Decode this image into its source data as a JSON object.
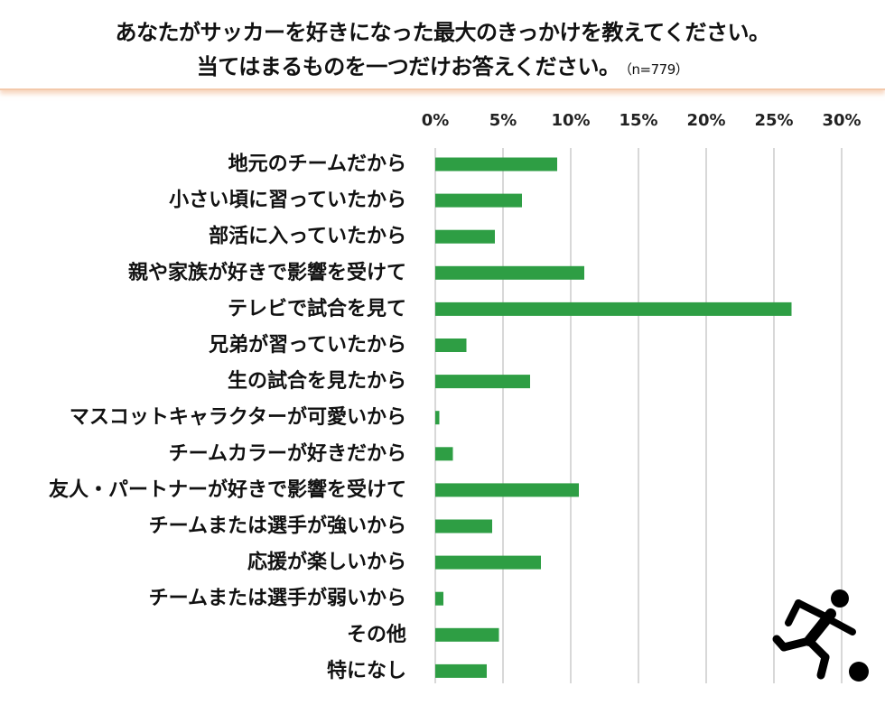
{
  "title": {
    "line1": "あなたがサッカーを好きになった最大のきっかけを教えてください。",
    "line2": "当てはまるものを一つだけお答えください。",
    "n_label": "（n=779）"
  },
  "chart_data": {
    "type": "bar",
    "orientation": "horizontal",
    "categories": [
      "地元のチームだから",
      "小さい頃に習っていたから",
      "部活に入っていたから",
      "親や家族が好きで影響を受けて",
      "テレビで試合を見て",
      "兄弟が習っていたから",
      "生の試合を見たから",
      "マスコットキャラクターが可愛いから",
      "チームカラーが好きだから",
      "友人・パートナーが好きで影響を受けて",
      "チームまたは選手が強いから",
      "応援が楽しいから",
      "チームまたは選手が弱いから",
      "その他",
      "特になし"
    ],
    "values": [
      9.0,
      6.4,
      4.4,
      11.0,
      26.3,
      2.3,
      7.0,
      0.3,
      1.3,
      10.6,
      4.2,
      7.8,
      0.6,
      4.7,
      3.8
    ],
    "xlim": [
      0,
      30
    ],
    "ticks": [
      0,
      5,
      10,
      15,
      20,
      25,
      30
    ],
    "tick_labels": [
      "0%",
      "5%",
      "10%",
      "15%",
      "20%",
      "25%",
      "30%"
    ],
    "grid": true,
    "bar_color": "#2e9e44",
    "grid_color": "#cccccc",
    "icon": "soccer-player-icon"
  }
}
